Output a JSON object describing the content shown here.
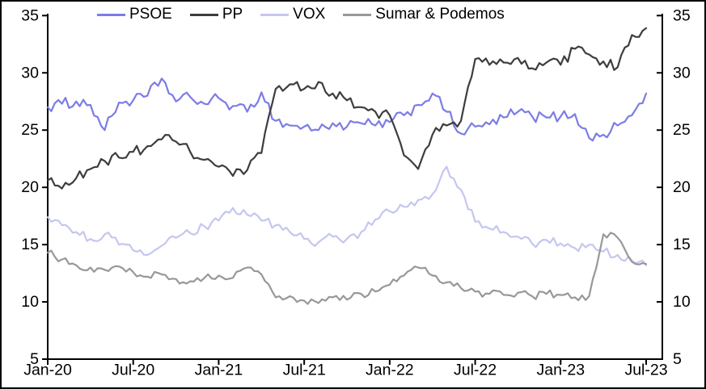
{
  "chart_data": {
    "type": "line",
    "title": "",
    "xlabel": "",
    "ylabel": "",
    "grid": false,
    "legend_position": "top",
    "dual_y_axis": true,
    "ylim": [
      5,
      35
    ],
    "y_ticks": [
      5,
      10,
      15,
      20,
      25,
      30,
      35
    ],
    "x_tick_labels": [
      "Jan-20",
      "Jul-20",
      "Jan-21",
      "Jul-21",
      "Jan-22",
      "Jul-22",
      "Jan-23",
      "Jul-23"
    ],
    "x_tick_indices": [
      0,
      6,
      12,
      18,
      24,
      30,
      36,
      42
    ],
    "x": [
      "Jan-20",
      "Feb-20",
      "Mar-20",
      "Apr-20",
      "May-20",
      "Jun-20",
      "Jul-20",
      "Aug-20",
      "Sep-20",
      "Oct-20",
      "Nov-20",
      "Dec-20",
      "Jan-21",
      "Feb-21",
      "Mar-21",
      "Apr-21",
      "May-21",
      "Jun-21",
      "Jul-21",
      "Aug-21",
      "Sep-21",
      "Oct-21",
      "Nov-21",
      "Dec-21",
      "Jan-22",
      "Feb-22",
      "Mar-22",
      "Apr-22",
      "May-22",
      "Jun-22",
      "Jul-22",
      "Aug-22",
      "Sep-22",
      "Oct-22",
      "Nov-22",
      "Dec-22",
      "Jan-23",
      "Feb-23",
      "Mar-23",
      "Apr-23",
      "May-23",
      "Jun-23",
      "Jul-23"
    ],
    "series": [
      {
        "name": "PSOE",
        "color": "#7b7ce6",
        "values": [
          27.0,
          27.3,
          27.5,
          27.2,
          25.0,
          27.4,
          27.6,
          28.0,
          29.5,
          27.5,
          27.9,
          27.3,
          27.8,
          27.1,
          26.6,
          28.3,
          25.8,
          25.4,
          25.3,
          25.0,
          25.6,
          25.3,
          25.6,
          25.4,
          25.7,
          26.3,
          27.2,
          28.2,
          26.6,
          24.7,
          25.3,
          25.5,
          26.1,
          26.6,
          26.2,
          26.1,
          26.2,
          26.4,
          24.3,
          24.6,
          25.4,
          26.3,
          28.2
        ]
      },
      {
        "name": "PP",
        "color": "#3d3d3d",
        "values": [
          20.6,
          19.9,
          20.8,
          21.6,
          22.3,
          22.6,
          23.1,
          23.6,
          24.2,
          24.0,
          23.1,
          22.4,
          21.8,
          21.0,
          21.5,
          23.0,
          28.6,
          29.0,
          28.6,
          29.2,
          28.2,
          27.6,
          27.0,
          26.6,
          26.3,
          22.8,
          21.6,
          24.6,
          25.4,
          25.8,
          31.2,
          30.7,
          30.9,
          31.3,
          30.4,
          30.9,
          30.7,
          32.1,
          31.6,
          31.0,
          30.5,
          33.3,
          33.9
        ]
      },
      {
        "name": "VOX",
        "color": "#c5c6f0",
        "values": [
          17.4,
          16.7,
          16.1,
          15.5,
          15.9,
          15.0,
          14.5,
          14.1,
          14.9,
          15.6,
          16.0,
          16.6,
          17.1,
          18.2,
          17.6,
          17.1,
          16.7,
          16.1,
          15.5,
          15.2,
          15.7,
          15.5,
          16.1,
          17.2,
          17.9,
          18.3,
          18.9,
          19.4,
          21.8,
          19.8,
          17.0,
          16.4,
          16.1,
          15.7,
          15.1,
          15.4,
          15.1,
          14.7,
          15.0,
          14.4,
          14.1,
          13.6,
          13.2
        ]
      },
      {
        "name": "Sumar & Podemos",
        "color": "#989898",
        "values": [
          14.3,
          13.7,
          13.2,
          13.0,
          12.8,
          13.1,
          12.6,
          12.2,
          12.4,
          12.0,
          11.8,
          12.1,
          12.3,
          12.1,
          13.0,
          12.4,
          10.4,
          10.5,
          10.1,
          9.9,
          10.4,
          10.2,
          10.7,
          10.9,
          11.5,
          12.3,
          13.0,
          12.3,
          11.7,
          11.2,
          10.9,
          10.7,
          10.6,
          10.8,
          10.5,
          10.7,
          10.6,
          10.4,
          10.5,
          15.9,
          15.6,
          13.5,
          13.3
        ]
      }
    ]
  }
}
